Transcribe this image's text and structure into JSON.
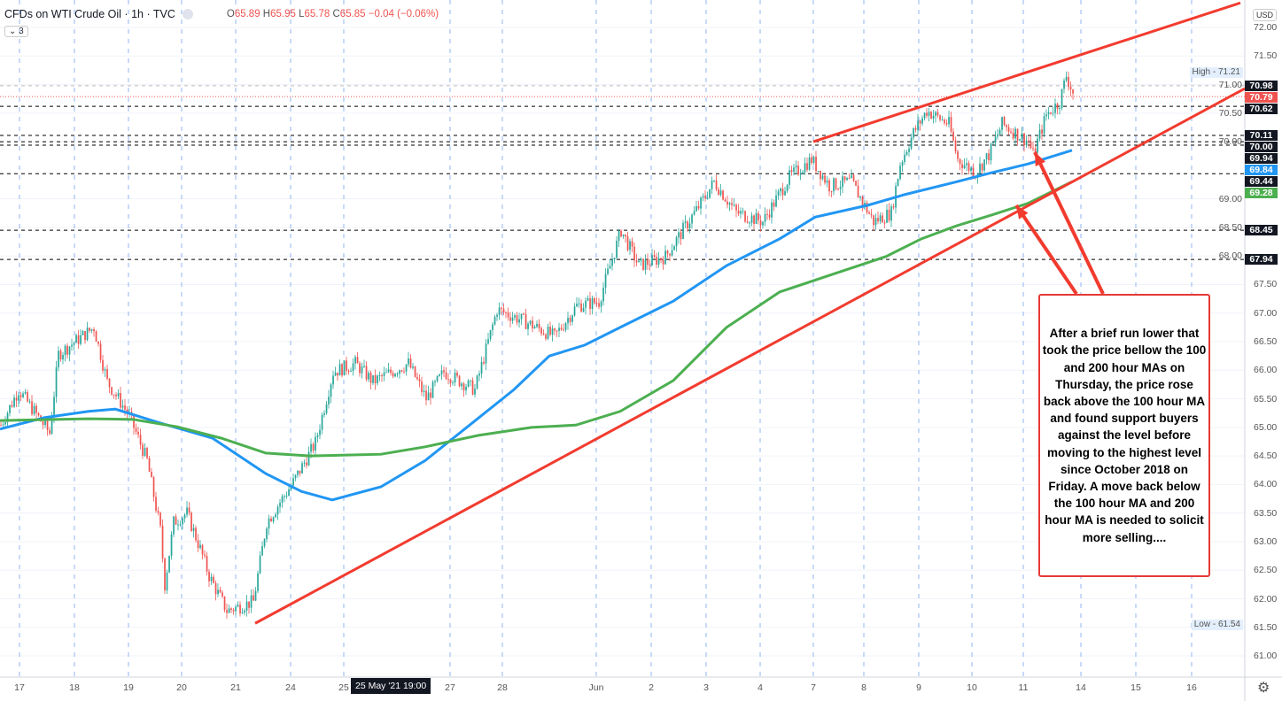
{
  "header": {
    "symbol": "CFDs on WTI Crude Oil · 1h · TVC",
    "o": "65.89",
    "h": "65.95",
    "l": "65.78",
    "c": "65.85",
    "change": "−0.04 (−0.06%)",
    "o_label": "O",
    "h_label": "H",
    "l_label": "L",
    "c_label": "C",
    "indicator_count": "⌄ 3"
  },
  "currency": "USD",
  "crosshair_label": "25 May '21  19:00",
  "annotation": "After a brief run lower that took the price bellow the 100 and 200 hour MAs on Thursday, the price rose back above the 100 hour MA and found support buyers against the level before moving to the highest level since October 2018 on Friday. A move back below the 100 hour MA and 200 hour MA is needed to solicit more selling....",
  "high_label": {
    "text": "High",
    "value": "71.21"
  },
  "low_label": {
    "text": "Low",
    "value": "61.54"
  },
  "colors": {
    "up": "#26a69a",
    "down": "#ef5350",
    "ma100": "#2196f3",
    "ma200": "#4caf50",
    "trend": "#f23b2f"
  },
  "chart_data": {
    "type": "candlestick",
    "title": "CFDs on WTI Crude Oil · 1h · TVC",
    "ylim": [
      60.7,
      72.3
    ],
    "y_ticks": [
      "72.00",
      "71.50",
      "71.00",
      "70.50",
      "70.00",
      "69.00",
      "68.50",
      "68.00",
      "67.50",
      "67.00",
      "66.50",
      "66.00",
      "65.50",
      "65.00",
      "64.50",
      "64.00",
      "63.50",
      "63.00",
      "62.50",
      "62.00",
      "61.50",
      "61.00"
    ],
    "x_ticks": [
      {
        "label": "17",
        "bar": 8.8
      },
      {
        "label": "18",
        "bar": 33.6
      },
      {
        "label": "19",
        "bar": 58
      },
      {
        "label": "20",
        "bar": 82
      },
      {
        "label": "21",
        "bar": 106.4
      },
      {
        "label": "24",
        "bar": 131.2
      },
      {
        "label": "25",
        "bar": 155.2
      },
      {
        "label": "27",
        "bar": 203.2
      },
      {
        "label": "28",
        "bar": 226.8
      },
      {
        "label": "Jun",
        "bar": 269.2
      },
      {
        "label": "2",
        "bar": 294
      },
      {
        "label": "3",
        "bar": 318.8
      },
      {
        "label": "4",
        "bar": 343.2
      },
      {
        "label": "7",
        "bar": 367.2
      },
      {
        "label": "8",
        "bar": 390
      },
      {
        "label": "9",
        "bar": 414.8
      },
      {
        "label": "10",
        "bar": 438.8
      },
      {
        "label": "11",
        "bar": 462
      },
      {
        "label": "14",
        "bar": 488
      },
      {
        "label": "15",
        "bar": 512.8
      },
      {
        "label": "16",
        "bar": 538
      }
    ],
    "price_path": [
      [
        0,
        65.04
      ],
      [
        8,
        65.66
      ],
      [
        22,
        64.9
      ],
      [
        26,
        66.28
      ],
      [
        42,
        66.75
      ],
      [
        48,
        65.8
      ],
      [
        58,
        65.2
      ],
      [
        66,
        64.42
      ],
      [
        72,
        63.2
      ],
      [
        74,
        62.25
      ],
      [
        78,
        63.34
      ],
      [
        84,
        63.5
      ],
      [
        90,
        62.87
      ],
      [
        94,
        62.4
      ],
      [
        102,
        61.79
      ],
      [
        114,
        61.95
      ],
      [
        120,
        63.34
      ],
      [
        132,
        64.04
      ],
      [
        142,
        64.73
      ],
      [
        150,
        65.97
      ],
      [
        160,
        66.12
      ],
      [
        168,
        65.8
      ],
      [
        184,
        66.12
      ],
      [
        192,
        65.5
      ],
      [
        200,
        65.97
      ],
      [
        214,
        65.66
      ],
      [
        224,
        67.06
      ],
      [
        234,
        66.9
      ],
      [
        250,
        66.59
      ],
      [
        260,
        67.13
      ],
      [
        270,
        67.2
      ],
      [
        280,
        68.45
      ],
      [
        288,
        67.83
      ],
      [
        300,
        67.99
      ],
      [
        316,
        68.92
      ],
      [
        322,
        69.3
      ],
      [
        332,
        68.76
      ],
      [
        344,
        68.6
      ],
      [
        356,
        69.38
      ],
      [
        366,
        69.69
      ],
      [
        374,
        69.23
      ],
      [
        384,
        69.3
      ],
      [
        394,
        68.6
      ],
      [
        402,
        68.76
      ],
      [
        406,
        69.61
      ],
      [
        412,
        70.16
      ],
      [
        418,
        70.54
      ],
      [
        428,
        70.31
      ],
      [
        432,
        69.69
      ],
      [
        440,
        69.46
      ],
      [
        446,
        69.77
      ],
      [
        452,
        70.31
      ],
      [
        464,
        70.0
      ],
      [
        466,
        69.77
      ],
      [
        472,
        70.47
      ],
      [
        478,
        70.7
      ],
      [
        481,
        71.16
      ],
      [
        484,
        70.85
      ]
    ],
    "series": [
      {
        "name": "MA 100",
        "points": [
          [
            0,
            64.97
          ],
          [
            20,
            65.17
          ],
          [
            40,
            65.28
          ],
          [
            52,
            65.32
          ],
          [
            72,
            65.08
          ],
          [
            96,
            64.81
          ],
          [
            120,
            64.19
          ],
          [
            136,
            63.88
          ],
          [
            150,
            63.73
          ],
          [
            172,
            63.96
          ],
          [
            192,
            64.42
          ],
          [
            212,
            65.04
          ],
          [
            232,
            65.66
          ],
          [
            248,
            66.25
          ],
          [
            264,
            66.44
          ],
          [
            280,
            66.75
          ],
          [
            304,
            67.21
          ],
          [
            328,
            67.83
          ],
          [
            352,
            68.3
          ],
          [
            368,
            68.68
          ],
          [
            392,
            68.89
          ],
          [
            408,
            69.07
          ],
          [
            432,
            69.3
          ],
          [
            448,
            69.46
          ],
          [
            464,
            69.61
          ],
          [
            484,
            69.85
          ]
        ]
      },
      {
        "name": "MA 200",
        "points": [
          [
            0,
            65.12
          ],
          [
            40,
            65.15
          ],
          [
            60,
            65.14
          ],
          [
            80,
            65.01
          ],
          [
            100,
            64.81
          ],
          [
            120,
            64.55
          ],
          [
            140,
            64.5
          ],
          [
            172,
            64.53
          ],
          [
            192,
            64.66
          ],
          [
            216,
            64.86
          ],
          [
            240,
            65.0
          ],
          [
            260,
            65.04
          ],
          [
            280,
            65.28
          ],
          [
            304,
            65.82
          ],
          [
            328,
            66.75
          ],
          [
            352,
            67.37
          ],
          [
            376,
            67.68
          ],
          [
            400,
            67.99
          ],
          [
            416,
            68.3
          ],
          [
            432,
            68.53
          ],
          [
            448,
            68.72
          ],
          [
            464,
            68.92
          ],
          [
            484,
            69.3
          ]
        ]
      }
    ],
    "trendlines": [
      {
        "name": "lower",
        "from": [
          115.2,
          61.57
        ],
        "to": [
          562,
          70.93
        ]
      },
      {
        "name": "upper",
        "from": [
          367.2,
          70.0
        ],
        "to": [
          560,
          72.43
        ]
      }
    ],
    "levels": [
      {
        "value": "70.98",
        "bg": "#131722",
        "line": "#bbb"
      },
      {
        "value": "70.79",
        "bg": "#ef5350",
        "line": "#ef5350"
      },
      {
        "value": "70.62",
        "bg": "#131722",
        "line": "#000"
      },
      {
        "value": "70.11",
        "bg": "#131722",
        "line": "#000"
      },
      {
        "value": "70.00",
        "bg": "#131722",
        "line": "#000"
      },
      {
        "value": "69.94",
        "bg": "#131722",
        "line": "#000"
      },
      {
        "value": "69.84",
        "bg": "#2196f3",
        "line": null
      },
      {
        "value": "69.44",
        "bg": "#131722",
        "line": "#000"
      },
      {
        "value": "69.28",
        "bg": "#4caf50",
        "line": null
      },
      {
        "value": "68.45",
        "bg": "#131722",
        "line": "#000"
      },
      {
        "value": "67.94",
        "bg": "#131722",
        "line": "#000"
      }
    ]
  }
}
